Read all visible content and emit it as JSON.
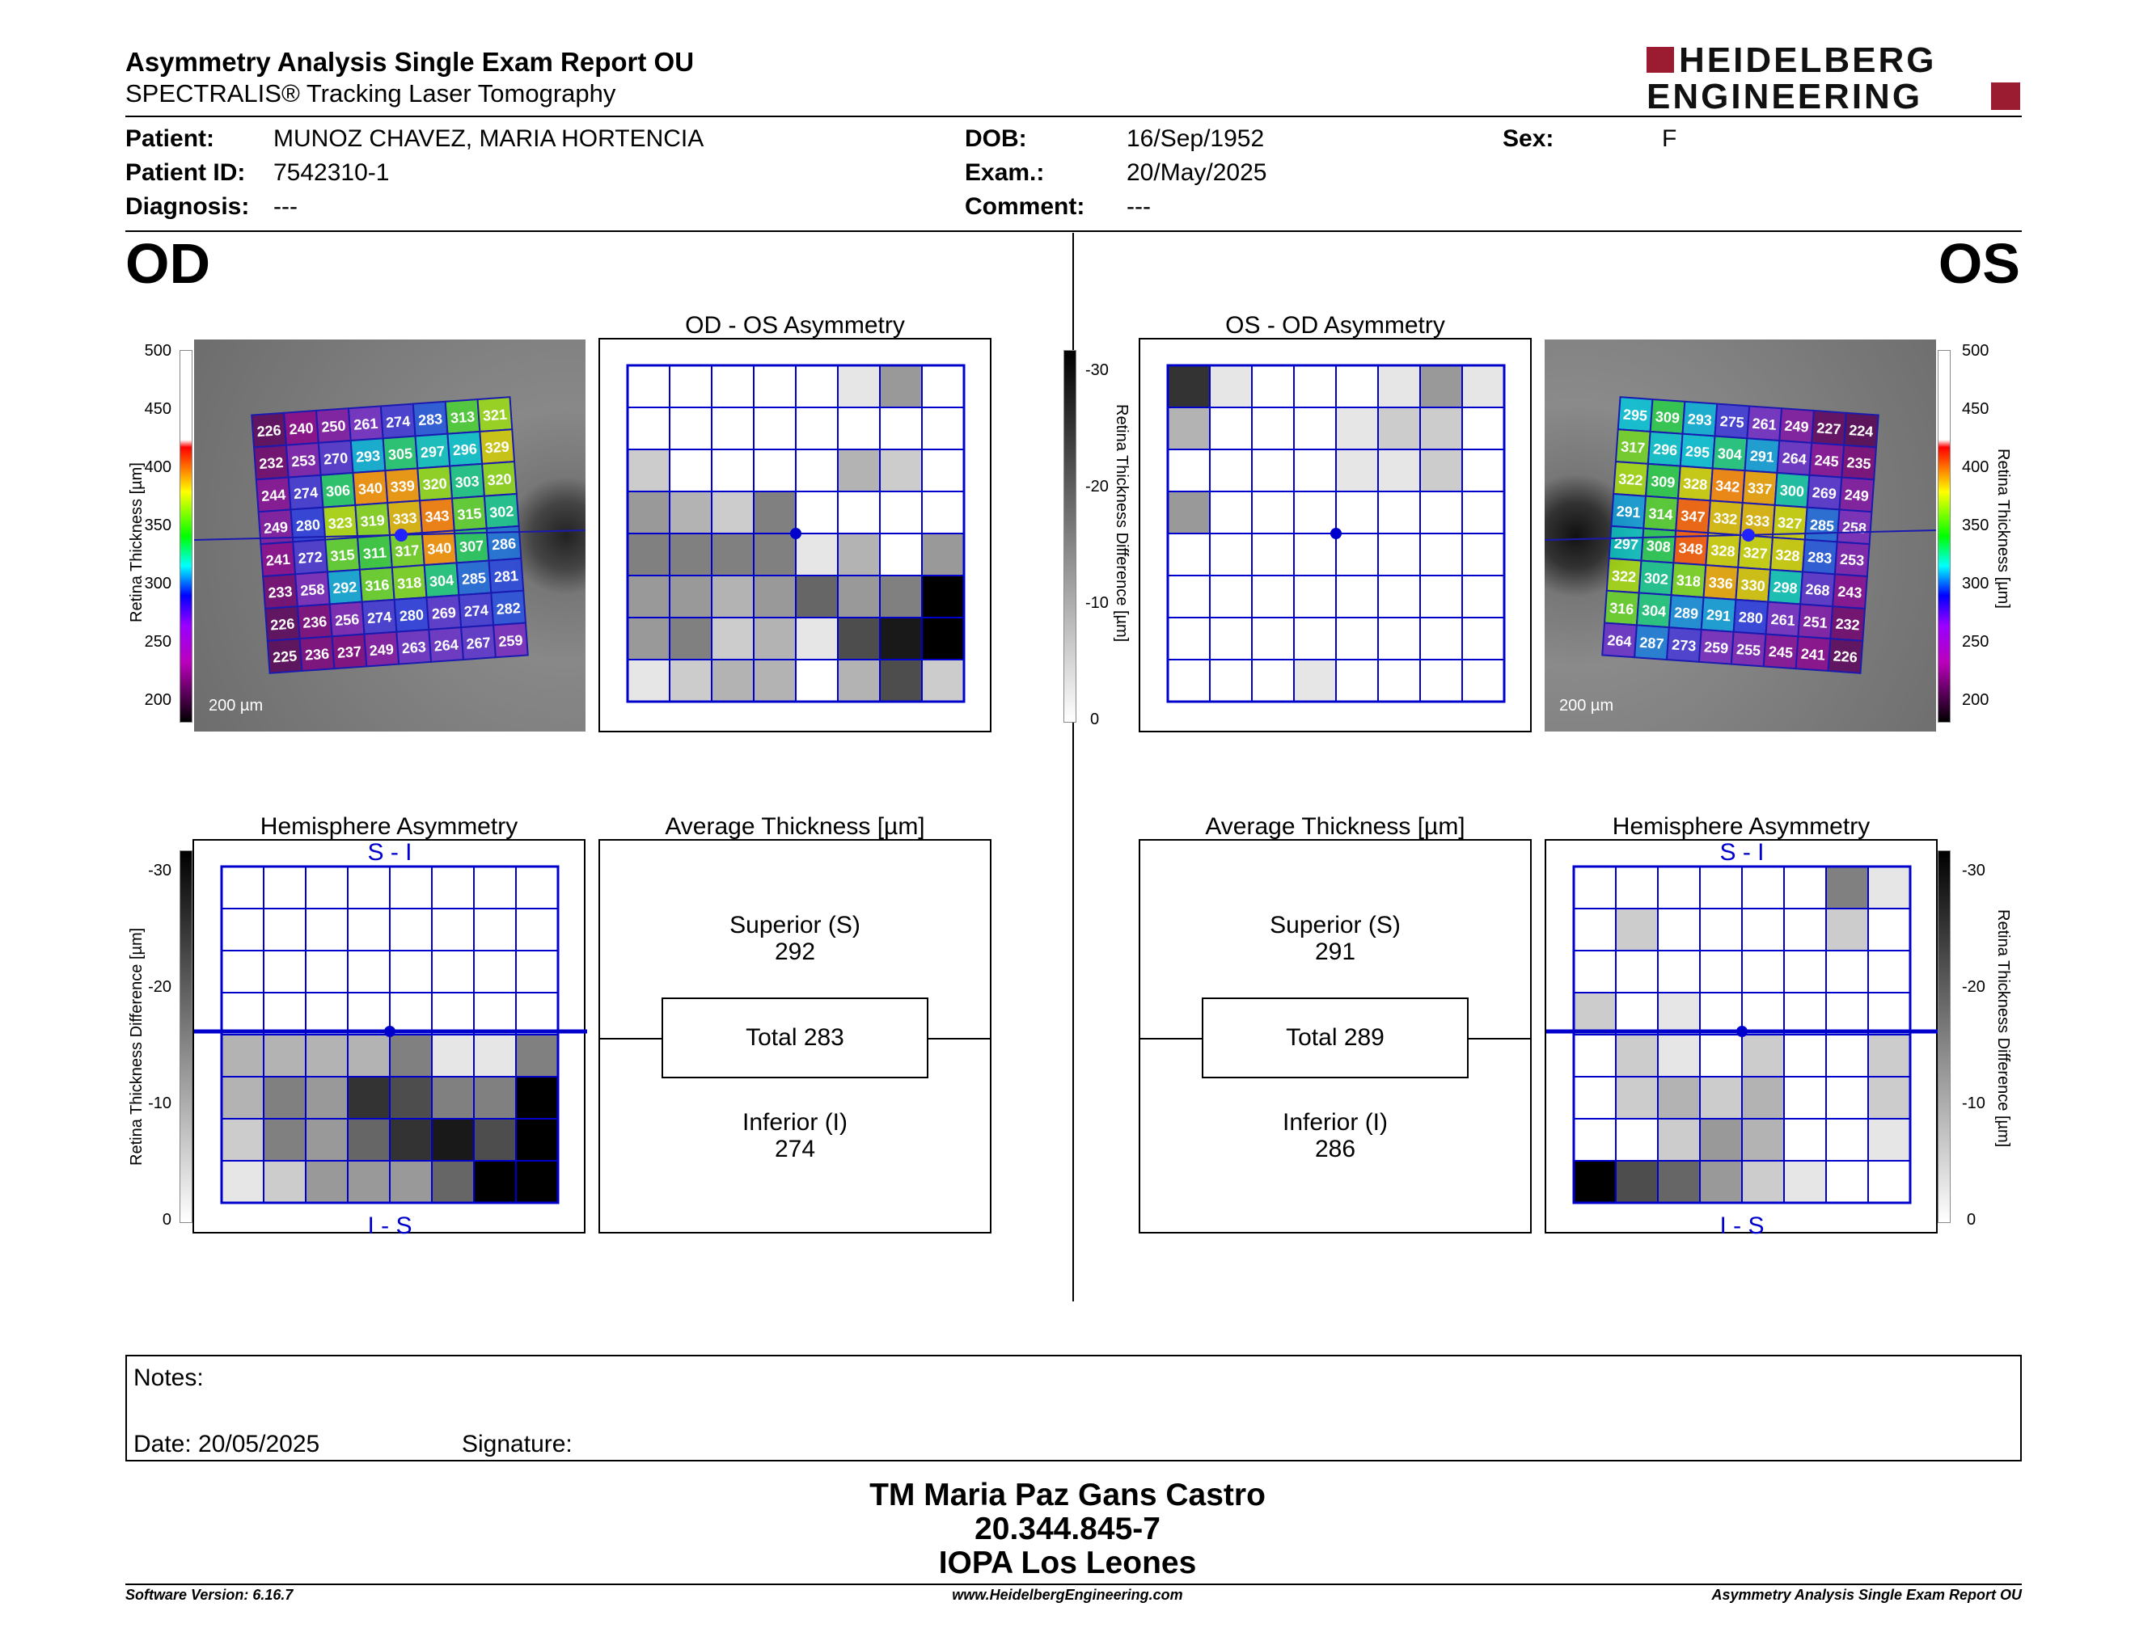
{
  "header": {
    "title": "Asymmetry Analysis Single Exam Report OU",
    "subtitle": "SPECTRALIS® Tracking Laser Tomography",
    "logo_line1": "HEIDELBERG",
    "logo_line2": "ENGINEERING",
    "brand_color": "#9b1b30"
  },
  "patient": {
    "patient_label": "Patient:",
    "patient_value": "MUNOZ CHAVEZ, MARIA HORTENCIA",
    "id_label": "Patient ID:",
    "id_value": "7542310-1",
    "diagnosis_label": "Diagnosis:",
    "diagnosis_value": "---",
    "dob_label": "DOB:",
    "dob_value": "16/Sep/1952",
    "exam_label": "Exam.:",
    "exam_value": "20/May/2025",
    "comment_label": "Comment:",
    "comment_value": "---",
    "sex_label": "Sex:",
    "sex_value": "F"
  },
  "od": {
    "eye_label": "OD",
    "asym_title": "OD - OS Asymmetry",
    "hemi_title": "Hemisphere Asymmetry",
    "avg_title": "Average Thickness [µm]",
    "hemi_top": "S - I",
    "hemi_bottom": "I - S",
    "superior_label": "Superior (S)",
    "superior_value": "292",
    "total_label": "Total 283",
    "inferior_label": "Inferior (I)",
    "inferior_value": "274",
    "scale_bar": "200 µm",
    "thickness_grid": [
      [
        226,
        240,
        250,
        261,
        274,
        283,
        313,
        321
      ],
      [
        232,
        253,
        270,
        293,
        305,
        297,
        296,
        329
      ],
      [
        244,
        274,
        306,
        340,
        339,
        320,
        303,
        320
      ],
      [
        249,
        280,
        323,
        319,
        333,
        343,
        315,
        302
      ],
      [
        241,
        272,
        315,
        311,
        317,
        340,
        307,
        286
      ],
      [
        233,
        258,
        292,
        316,
        318,
        304,
        285,
        281
      ],
      [
        226,
        236,
        256,
        274,
        280,
        269,
        274,
        282
      ],
      [
        225,
        236,
        237,
        249,
        263,
        264,
        267,
        259
      ]
    ],
    "asym_grid": [
      [
        0,
        0,
        0,
        0,
        0,
        3,
        12,
        0
      ],
      [
        0,
        0,
        0,
        0,
        0,
        0,
        0,
        0
      ],
      [
        6,
        0,
        0,
        0,
        0,
        9,
        6,
        0
      ],
      [
        12,
        9,
        6,
        15,
        0,
        0,
        0,
        0
      ],
      [
        15,
        15,
        15,
        15,
        3,
        9,
        0,
        12
      ],
      [
        12,
        12,
        9,
        12,
        18,
        12,
        15,
        30
      ],
      [
        12,
        15,
        6,
        9,
        3,
        21,
        27,
        30
      ],
      [
        3,
        6,
        9,
        9,
        0,
        9,
        21,
        6
      ]
    ],
    "hemi_grid": [
      [
        0,
        0,
        0,
        0,
        0,
        0,
        0,
        0
      ],
      [
        0,
        0,
        0,
        0,
        0,
        0,
        0,
        0
      ],
      [
        0,
        0,
        0,
        0,
        0,
        0,
        0,
        0
      ],
      [
        0,
        0,
        0,
        0,
        0,
        0,
        0,
        0
      ],
      [
        9,
        9,
        9,
        9,
        15,
        3,
        3,
        15
      ],
      [
        9,
        15,
        12,
        24,
        21,
        15,
        15,
        30
      ],
      [
        6,
        15,
        12,
        18,
        24,
        27,
        21,
        30
      ],
      [
        3,
        6,
        12,
        12,
        12,
        18,
        30,
        30
      ]
    ]
  },
  "os": {
    "eye_label": "OS",
    "asym_title": "OS - OD Asymmetry",
    "hemi_title": "Hemisphere Asymmetry",
    "avg_title": "Average Thickness [µm]",
    "hemi_top": "S - I",
    "hemi_bottom": "I - S",
    "superior_label": "Superior (S)",
    "superior_value": "291",
    "total_label": "Total 289",
    "inferior_label": "Inferior (I)",
    "inferior_value": "286",
    "scale_bar": "200 µm",
    "thickness_grid": [
      [
        295,
        309,
        293,
        275,
        261,
        249,
        227,
        224
      ],
      [
        317,
        296,
        295,
        304,
        291,
        264,
        245,
        235
      ],
      [
        322,
        309,
        328,
        342,
        337,
        300,
        269,
        249
      ],
      [
        291,
        314,
        347,
        332,
        333,
        327,
        285,
        258
      ],
      [
        297,
        308,
        348,
        328,
        327,
        328,
        283,
        253
      ],
      [
        322,
        302,
        318,
        336,
        330,
        298,
        268,
        243
      ],
      [
        316,
        304,
        289,
        291,
        280,
        261,
        251,
        232
      ],
      [
        264,
        287,
        273,
        259,
        255,
        245,
        241,
        226
      ]
    ],
    "asym_grid": [
      [
        24,
        3,
        0,
        0,
        0,
        3,
        12,
        3
      ],
      [
        9,
        0,
        0,
        0,
        3,
        6,
        6,
        0
      ],
      [
        0,
        0,
        0,
        0,
        3,
        3,
        6,
        0
      ],
      [
        12,
        0,
        0,
        0,
        0,
        0,
        0,
        0
      ],
      [
        0,
        0,
        0,
        0,
        0,
        0,
        0,
        0
      ],
      [
        0,
        0,
        0,
        0,
        0,
        0,
        0,
        0
      ],
      [
        0,
        0,
        0,
        0,
        0,
        0,
        0,
        0
      ],
      [
        0,
        0,
        0,
        3,
        0,
        0,
        0,
        0
      ]
    ],
    "hemi_grid": [
      [
        0,
        0,
        0,
        0,
        0,
        0,
        15,
        3
      ],
      [
        0,
        6,
        0,
        0,
        0,
        0,
        6,
        0
      ],
      [
        0,
        0,
        0,
        0,
        0,
        0,
        0,
        0
      ],
      [
        6,
        0,
        3,
        0,
        0,
        0,
        0,
        0
      ],
      [
        0,
        6,
        3,
        0,
        6,
        0,
        0,
        6
      ],
      [
        0,
        6,
        9,
        6,
        9,
        0,
        0,
        6
      ],
      [
        0,
        0,
        6,
        12,
        9,
        0,
        0,
        3
      ],
      [
        30,
        21,
        18,
        12,
        6,
        3,
        0,
        0
      ]
    ]
  },
  "thickness_scale": {
    "label": "Retina Thickness [µm]",
    "ticks": [
      "500",
      "450",
      "400",
      "350",
      "300",
      "250",
      "200"
    ]
  },
  "difference_scale": {
    "label": "Retina Thickness Difference [µm]",
    "ticks": [
      "-30",
      "-20",
      "-10",
      "0"
    ]
  },
  "notes": {
    "notes_label": "Notes:",
    "date_label": "Date: 20/05/2025",
    "signature_label": "Signature:"
  },
  "signature_block": {
    "name": "TM Maria Paz Gans Castro",
    "rut": "20.344.845-7",
    "clinic": "IOPA Los Leones"
  },
  "footer": {
    "software": "Software Version: 6.16.7",
    "url": "www.HeidelbergEngineering.com",
    "report": "Asymmetry Analysis Single Exam Report OU"
  }
}
